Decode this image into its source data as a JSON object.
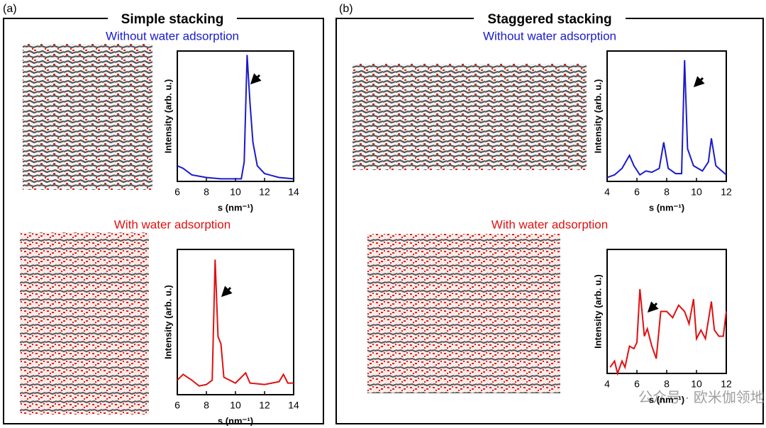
{
  "panels": [
    {
      "label": "(a)",
      "title": "Simple stacking",
      "subtitles": [
        "Without water adsorption",
        "With water adsorption"
      ]
    },
    {
      "label": "(b)",
      "title": "Staggered stacking",
      "subtitles": [
        "Without water adsorption",
        "With water adsorption"
      ]
    }
  ],
  "watermark": "公众号 · 欧米伽领地",
  "chart_data": [
    {
      "type": "line",
      "xlabel": "s (nm⁻¹)",
      "ylabel": "Intensity (arb. u.)",
      "x": [
        6.0,
        6.4,
        7.0,
        8.0,
        9.0,
        10.0,
        10.4,
        10.6,
        10.8,
        11.0,
        11.2,
        11.5,
        12.0,
        13.0,
        14.0
      ],
      "series": [
        {
          "color": "#1a1acc",
          "values": [
            0.12,
            0.1,
            0.05,
            0.03,
            0.02,
            0.02,
            0.02,
            0.15,
            0.97,
            0.6,
            0.3,
            0.12,
            0.06,
            0.03,
            0.02
          ]
        }
      ],
      "xlim": [
        6,
        14
      ],
      "xticks": [
        6,
        8,
        10,
        12,
        14
      ],
      "ylim": [
        0,
        1
      ]
    },
    {
      "type": "line",
      "xlabel": "s (nm⁻¹)",
      "ylabel": "Intensity (arb. u.)",
      "x": [
        6.0,
        6.4,
        7.0,
        7.5,
        8.0,
        8.4,
        8.6,
        8.8,
        9.0,
        9.2,
        10.0,
        10.7,
        11.0,
        12.0,
        13.0,
        13.3,
        13.6,
        14.0
      ],
      "series": [
        {
          "color": "#e01010",
          "values": [
            0.1,
            0.14,
            0.1,
            0.06,
            0.07,
            0.1,
            0.93,
            0.4,
            0.35,
            0.12,
            0.08,
            0.15,
            0.08,
            0.07,
            0.09,
            0.14,
            0.08,
            0.08
          ]
        }
      ],
      "xlim": [
        6,
        14
      ],
      "xticks": [
        6,
        8,
        10,
        12,
        14
      ],
      "ylim": [
        0,
        1
      ]
    },
    {
      "type": "line",
      "xlabel": "s (nm⁻¹)",
      "ylabel": "Intensity (arb. u.)",
      "x": [
        4.0,
        4.5,
        5.0,
        5.5,
        5.8,
        6.2,
        6.6,
        7.0,
        7.5,
        7.8,
        8.1,
        8.6,
        9.0,
        9.2,
        9.4,
        9.8,
        10.4,
        10.8,
        11.0,
        11.3,
        11.7,
        12.0
      ],
      "series": [
        {
          "color": "#1a1acc",
          "values": [
            0.03,
            0.05,
            0.1,
            0.2,
            0.12,
            0.05,
            0.08,
            0.07,
            0.1,
            0.3,
            0.1,
            0.06,
            0.06,
            0.93,
            0.25,
            0.12,
            0.08,
            0.15,
            0.33,
            0.12,
            0.08,
            0.05
          ]
        }
      ],
      "xlim": [
        4,
        12
      ],
      "xticks": [
        4,
        6,
        8,
        10,
        12
      ],
      "ylim": [
        0,
        1
      ]
    },
    {
      "type": "line",
      "xlabel": "s (nm⁻¹)",
      "ylabel": "Intensity (arb. u.)",
      "x": [
        4.2,
        4.5,
        4.7,
        5.0,
        5.2,
        5.5,
        5.8,
        6.0,
        6.2,
        6.5,
        6.7,
        7.0,
        7.3,
        7.6,
        8.0,
        8.4,
        8.8,
        9.2,
        9.5,
        9.8,
        10.0,
        10.3,
        10.6,
        11.0,
        11.2,
        11.5,
        11.8,
        12.0
      ],
      "series": [
        {
          "color": "#e01010",
          "values": [
            0.05,
            0.1,
            0.0,
            0.1,
            0.05,
            0.22,
            0.2,
            0.25,
            0.68,
            0.3,
            0.36,
            0.22,
            0.12,
            0.5,
            0.5,
            0.45,
            0.55,
            0.5,
            0.4,
            0.6,
            0.28,
            0.35,
            0.28,
            0.58,
            0.35,
            0.3,
            0.3,
            0.5
          ]
        }
      ],
      "xlim": [
        4,
        12
      ],
      "xticks": [
        4,
        6,
        8,
        10,
        12
      ],
      "ylim": [
        0,
        1
      ]
    }
  ]
}
